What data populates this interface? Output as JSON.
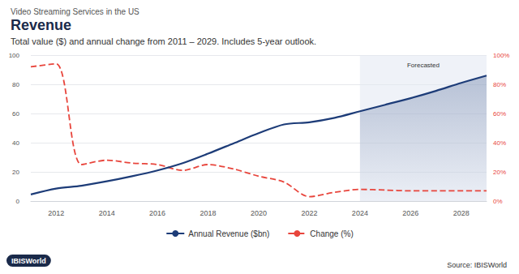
{
  "chart_data": {
    "type": "line",
    "overtitle": "Video Streaming Services in the US",
    "title": "Revenue",
    "subtitle": "Total value ($) and annual change from 2011 – 2029. Includes 5-year outlook.",
    "x": [
      2011,
      2012,
      2013,
      2014,
      2015,
      2016,
      2017,
      2018,
      2019,
      2020,
      2021,
      2022,
      2023,
      2024,
      2025,
      2026,
      2027,
      2028,
      2029
    ],
    "xlim": [
      2011,
      2029
    ],
    "xticks": [
      2012,
      2014,
      2016,
      2018,
      2020,
      2022,
      2024,
      2026,
      2028
    ],
    "ylim": [
      0,
      100
    ],
    "yticks": [
      0,
      20,
      40,
      60,
      80,
      100
    ],
    "y2lim": [
      0,
      100
    ],
    "y2ticks": [
      {
        "value": 0,
        "label": "0%"
      },
      {
        "value": 20,
        "label": "20%"
      },
      {
        "value": 40,
        "label": "40%"
      },
      {
        "value": 60,
        "label": "60%"
      },
      {
        "value": 80,
        "label": "80%"
      },
      {
        "value": 100,
        "label": "100%"
      }
    ],
    "series": [
      {
        "name": "Annual Revenue ($bn)",
        "color": "#1d3c78",
        "line_style": "solid",
        "marker": "none",
        "values": [
          4.5,
          8.5,
          10.5,
          13.5,
          17,
          21,
          26,
          32.5,
          39.5,
          46.5,
          52.5,
          54,
          57,
          61.5,
          66,
          70.5,
          75.5,
          81,
          86
        ]
      },
      {
        "name": "Change (%)",
        "color": "#e8453c",
        "line_style": "dashed",
        "marker": "none",
        "axis": "y2",
        "values": [
          92,
          94,
          25,
          28,
          26,
          25,
          21,
          25,
          22,
          17,
          13,
          3,
          6,
          8,
          7.5,
          7,
          7,
          7,
          7
        ]
      }
    ],
    "forecast": {
      "from": 2024,
      "to": 2029,
      "label": "Forecasted"
    },
    "grid": true,
    "legend": "bottom",
    "logo": "IBISWorld",
    "source": "Source: IBISWorld"
  }
}
